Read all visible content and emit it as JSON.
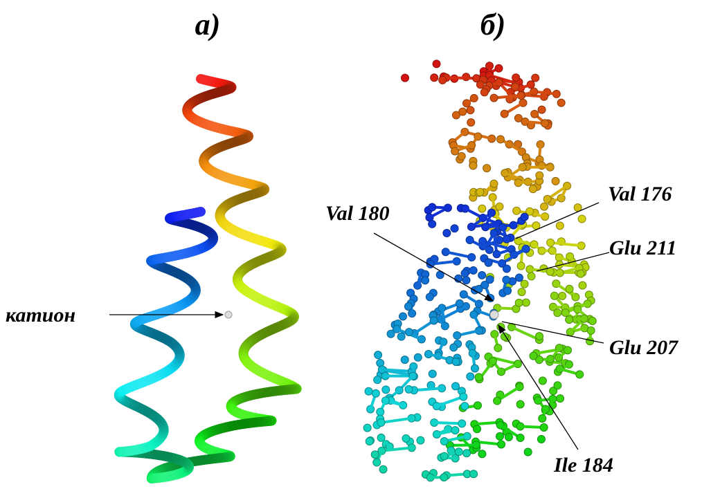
{
  "panels": [
    {
      "label": "а)"
    },
    {
      "label": "б)"
    }
  ],
  "annotations": [
    "катион",
    "Val 180",
    "Val 176",
    "Glu 211",
    "Glu 207",
    "Ile 184"
  ]
}
